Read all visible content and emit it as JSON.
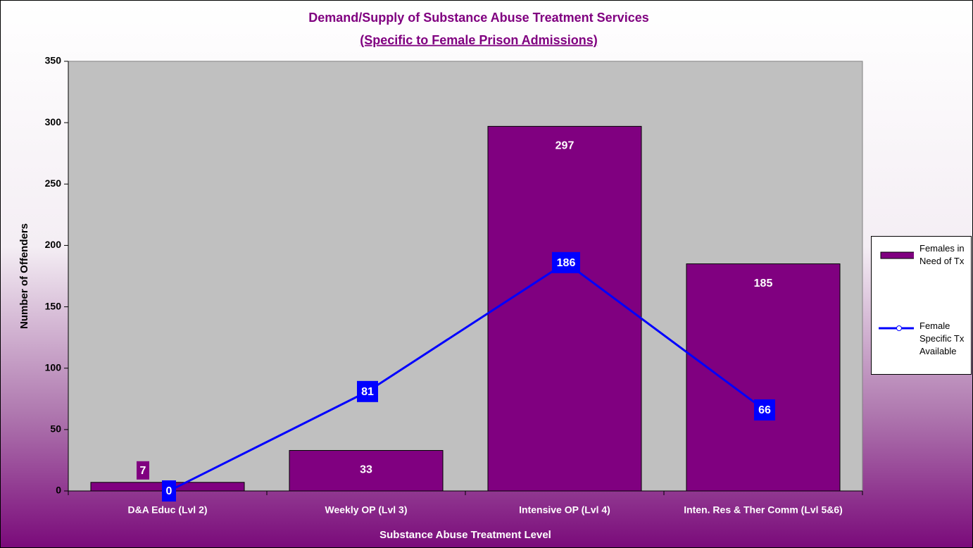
{
  "chart_data": {
    "type": "bar_line",
    "title": "Demand/Supply of Substance Abuse Treatment Services",
    "subtitle": "(Specific to Female Prison Admissions)",
    "x_label": "Substance Abuse Treatment Level",
    "y_label": "Number of Offenders",
    "categories": [
      "D&A Educ (Lvl 2)",
      "Weekly OP (Lvl 3)",
      "Intensive OP (Lvl 4)",
      "Inten. Res & Ther Comm (Lvl 5&6)"
    ],
    "series": [
      {
        "name": "Females in Need of Tx",
        "type": "bar",
        "color": "#800080",
        "values": [
          7,
          33,
          297,
          185
        ]
      },
      {
        "name": "Female Specific Tx Available",
        "type": "line",
        "color": "#0000ff",
        "values": [
          0,
          81,
          186,
          66
        ]
      }
    ],
    "ylim": [
      0,
      350
    ],
    "yticks": [
      0,
      50,
      100,
      150,
      200,
      250,
      300,
      350
    ],
    "legend": "right"
  }
}
